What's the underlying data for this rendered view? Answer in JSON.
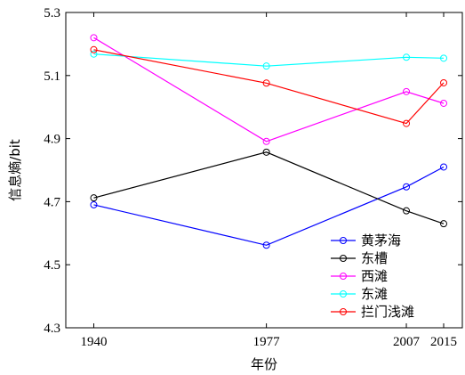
{
  "chart_data": {
    "type": "line",
    "xlabel": "年份",
    "ylabel": "信息熵/bit",
    "x": [
      1940,
      1977,
      2007,
      2015
    ],
    "x_tick_labels": [
      "1940",
      "1977",
      "2007",
      "2015"
    ],
    "xlim": [
      1934,
      2019
    ],
    "ylim": [
      4.3,
      5.3
    ],
    "y_ticks": [
      4.3,
      4.5,
      4.7,
      4.9,
      5.1,
      5.3
    ],
    "y_tick_labels": [
      "4.3",
      "4.5",
      "4.7",
      "4.9",
      "5.1",
      "5.3"
    ],
    "grid": false,
    "legend_position": "lower right",
    "marker": "open-circle",
    "series": [
      {
        "name": "黄茅海",
        "color": "#0000ff",
        "values": [
          4.69,
          4.562,
          4.747,
          4.81
        ]
      },
      {
        "name": "东槽",
        "color": "#000000",
        "values": [
          4.712,
          4.857,
          4.671,
          4.63
        ]
      },
      {
        "name": "西滩",
        "color": "#ff00ff",
        "values": [
          5.22,
          4.891,
          5.049,
          5.012
        ]
      },
      {
        "name": "东滩",
        "color": "#00ffff",
        "values": [
          5.168,
          5.13,
          5.158,
          5.155
        ]
      },
      {
        "name": "拦门浅滩",
        "color": "#ff0000",
        "values": [
          5.182,
          5.076,
          4.948,
          5.077
        ]
      }
    ]
  }
}
